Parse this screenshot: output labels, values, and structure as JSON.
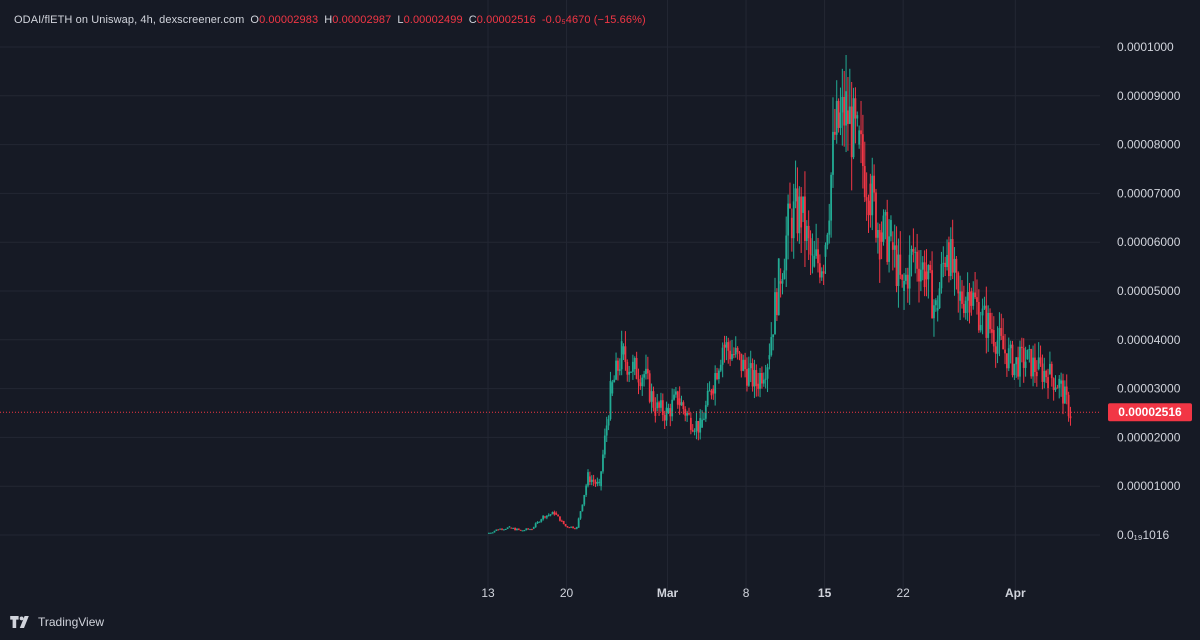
{
  "legend": {
    "symbol": "ODAI/flETH on Uniswap, 4h, dexscreener.com",
    "o_label": "O",
    "o_value": "0.00002983",
    "h_label": "H",
    "h_value": "0.00002987",
    "l_label": "L",
    "l_value": "0.00002499",
    "c_label": "C",
    "c_value": "0.00002516",
    "change": "-0.0₅4670 (−15.66%)"
  },
  "current_price_label": "0.00002516",
  "branding": "TradingView",
  "colors": {
    "background": "#161a25",
    "up": "#22ab94",
    "down": "#f23645",
    "grid": "#232733",
    "text": "#d1d4dc"
  },
  "chart_data": {
    "type": "candlestick",
    "title": "ODAI/flETH on Uniswap, 4h, dexscreener.com",
    "y_tick_labels": [
      "0.0₁₉1016",
      "0.00001000",
      "0.00002000",
      "0.00003000",
      "0.00004000",
      "0.00005000",
      "0.00006000",
      "0.00007000",
      "0.00008000",
      "0.00009000",
      "0.0001000"
    ],
    "y_tick_values": [
      0.0,
      1e-05,
      2e-05,
      3e-05,
      4e-05,
      5e-05,
      6e-05,
      7e-05,
      8e-05,
      9e-05,
      0.0001
    ],
    "x_tick_labels": [
      "13",
      "20",
      "Mar",
      "8",
      "15",
      "22",
      "Apr"
    ],
    "x_tick_bold": [
      false,
      false,
      true,
      false,
      true,
      false,
      true
    ],
    "x_tick_dates": [
      "2025-02-13",
      "2025-02-20",
      "2025-03-01",
      "2025-03-08",
      "2025-03-15",
      "2025-03-22",
      "2025-04-01"
    ],
    "ylim": [
      -8.5e-06,
      0.0001085
    ],
    "current_price": 2.516e-05,
    "grid": true,
    "candle_interval": "4h",
    "series": [
      {
        "name": "close (approx.)",
        "x": [
          "2025-02-13",
          "2025-02-14",
          "2025-02-15",
          "2025-02-16",
          "2025-02-17",
          "2025-02-18",
          "2025-02-19",
          "2025-02-20",
          "2025-02-21",
          "2025-02-22",
          "2025-02-23",
          "2025-02-24",
          "2025-02-25",
          "2025-02-26",
          "2025-02-27",
          "2025-02-28",
          "2025-03-01",
          "2025-03-02",
          "2025-03-03",
          "2025-03-04",
          "2025-03-05",
          "2025-03-06",
          "2025-03-07",
          "2025-03-08",
          "2025-03-09",
          "2025-03-10",
          "2025-03-11",
          "2025-03-12",
          "2025-03-13",
          "2025-03-14",
          "2025-03-15",
          "2025-03-16",
          "2025-03-17",
          "2025-03-18",
          "2025-03-19",
          "2025-03-20",
          "2025-03-21",
          "2025-03-22",
          "2025-03-23",
          "2025-03-24",
          "2025-03-25",
          "2025-03-26",
          "2025-03-27",
          "2025-03-28",
          "2025-03-29",
          "2025-03-30",
          "2025-03-31",
          "2025-04-01",
          "2025-04-02",
          "2025-04-03",
          "2025-04-04",
          "2025-04-05",
          "2025-04-06"
        ],
        "values": [
          3e-07,
          1.2e-06,
          1.5e-06,
          9e-07,
          1.3e-06,
          3.8e-06,
          4.5e-06,
          1.8e-06,
          1.5e-06,
          1.2e-05,
          1e-05,
          2.9e-05,
          3.7e-05,
          3.4e-05,
          3.3e-05,
          2.6e-05,
          2.5e-05,
          2.8e-05,
          2.4e-05,
          2.2e-05,
          3e-05,
          3.9e-05,
          3.7e-05,
          3.4e-05,
          3.1e-05,
          3.6e-05,
          5.2e-05,
          6.5e-05,
          6.6e-05,
          5.5e-05,
          5.7e-05,
          8.2e-05,
          8.7e-05,
          8e-05,
          7.2e-05,
          6.2e-05,
          6e-05,
          5e-05,
          5.8e-05,
          5.4e-05,
          4.6e-05,
          6e-05,
          4.8e-05,
          5e-05,
          4.5e-05,
          4.2e-05,
          3.8e-05,
          3.5e-05,
          3.6e-05,
          3.4e-05,
          3.3e-05,
          3.1e-05,
          2.5e-05
        ]
      }
    ]
  }
}
